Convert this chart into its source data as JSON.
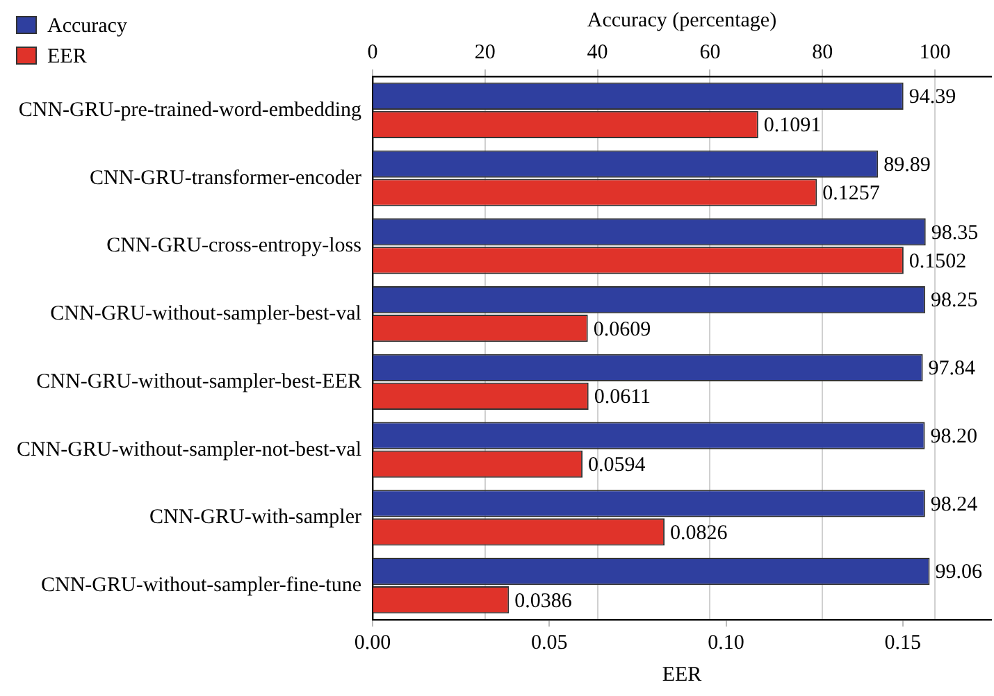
{
  "chart_data": {
    "type": "bar",
    "orientation": "horizontal",
    "xlabel": "EER",
    "x2label": "Accuracy (percentage)",
    "categories": [
      "CNN-GRU-pre-trained-word-embedding",
      "CNN-GRU-transformer-encoder",
      "CNN-GRU-cross-entropy-loss",
      "CNN-GRU-without-sampler-best-val",
      "CNN-GRU-without-sampler-best-EER",
      "CNN-GRU-without-sampler-not-best-val",
      "CNN-GRU-with-sampler",
      "CNN-GRU-without-sampler-fine-tune"
    ],
    "series": [
      {
        "name": "Accuracy",
        "color": "#2f3f9f",
        "axis": "x2",
        "values": [
          94.39,
          89.89,
          98.35,
          98.25,
          97.84,
          98.2,
          98.24,
          99.06
        ],
        "value_labels": [
          "94.39",
          "89.89",
          "98.35",
          "98.25",
          "97.84",
          "98.20",
          "98.24",
          "99.06"
        ]
      },
      {
        "name": "EER",
        "color": "#e0332a",
        "values": [
          0.1091,
          0.1257,
          0.1502,
          0.0609,
          0.0611,
          0.0594,
          0.0826,
          0.0386
        ],
        "value_labels": [
          "0.1091",
          "0.1257",
          "0.1502",
          "0.0609",
          "0.0611",
          "0.0594",
          "0.0826",
          "0.0386"
        ]
      }
    ],
    "xlim": [
      0,
      0.175
    ],
    "xticks": [
      {
        "value": 0,
        "label": "0.00"
      },
      {
        "value": 0.05,
        "label": "0.05"
      },
      {
        "value": 0.1,
        "label": "0.10"
      },
      {
        "value": 0.15,
        "label": "0.15"
      }
    ],
    "x2lim": [
      0,
      110
    ],
    "x2ticks": [
      0,
      20,
      40,
      60,
      80,
      100
    ],
    "grid": "x",
    "legend": "top left"
  }
}
